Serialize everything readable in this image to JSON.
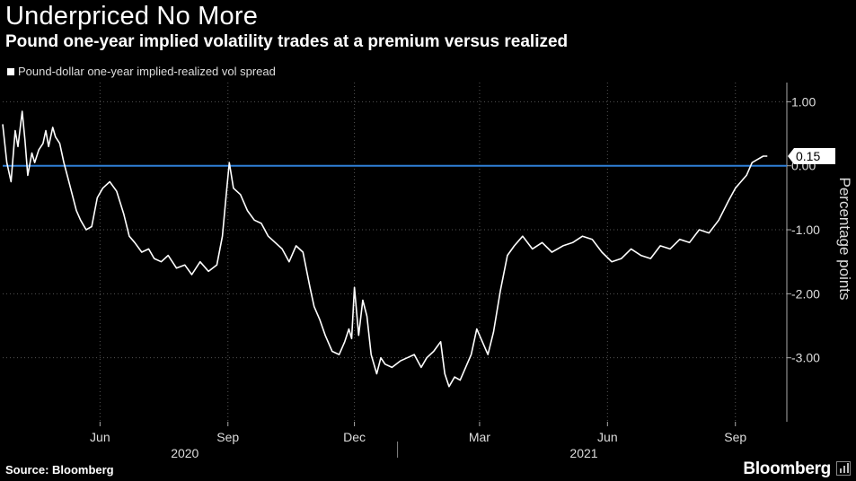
{
  "header": {
    "title": "Underpriced No More",
    "subtitle": "Pound one-year implied volatility trades at a premium versus realized"
  },
  "footer": {
    "source": "Source: Bloomberg",
    "brand": "Bloomberg"
  },
  "colors": {
    "background": "#000000",
    "series": "#ffffff",
    "zero_line": "#2f7fd6",
    "callout_bg": "#ffffff"
  },
  "chart_data": {
    "type": "line",
    "title": "Underpriced No More",
    "subtitle": "Pound one-year implied volatility trades at a premium versus realized",
    "ylabel": "Percentage points",
    "ylim": [
      -4.0,
      1.3
    ],
    "yticks": [
      1.0,
      0.0,
      -1.0,
      -2.0,
      -3.0
    ],
    "ytick_labels": [
      "1.00",
      "0.00",
      "-1.00",
      "-2.00",
      "-3.00"
    ],
    "x_range": [
      "2020-03-23",
      "2021-10-08"
    ],
    "x_ticks": [
      {
        "date": "2020-06-01",
        "label": "Jun"
      },
      {
        "date": "2020-09-01",
        "label": "Sep"
      },
      {
        "date": "2020-12-01",
        "label": "Dec"
      },
      {
        "date": "2021-03-01",
        "label": "Mar"
      },
      {
        "date": "2021-06-01",
        "label": "Jun"
      },
      {
        "date": "2021-09-01",
        "label": "Sep"
      }
    ],
    "x_years": [
      {
        "label": "2020",
        "center": "2020-08-01"
      },
      {
        "label": "2021",
        "center": "2021-05-15"
      }
    ],
    "year_divider": "2021-01-01",
    "grid": true,
    "legend_position": "top-left",
    "reference_line": {
      "y": 0.0
    },
    "last_value_label": "0.15",
    "series": [
      {
        "name": "Pound-dollar one-year implied-realized vol spread",
        "x": [
          "2020-03-23",
          "2020-03-26",
          "2020-03-29",
          "2020-04-01",
          "2020-04-03",
          "2020-04-06",
          "2020-04-08",
          "2020-04-10",
          "2020-04-13",
          "2020-04-15",
          "2020-04-18",
          "2020-04-21",
          "2020-04-23",
          "2020-04-25",
          "2020-04-28",
          "2020-04-30",
          "2020-05-03",
          "2020-05-06",
          "2020-05-09",
          "2020-05-12",
          "2020-05-15",
          "2020-05-18",
          "2020-05-22",
          "2020-05-26",
          "2020-05-30",
          "2020-06-03",
          "2020-06-08",
          "2020-06-13",
          "2020-06-18",
          "2020-06-22",
          "2020-06-26",
          "2020-07-01",
          "2020-07-06",
          "2020-07-10",
          "2020-07-15",
          "2020-07-20",
          "2020-07-26",
          "2020-08-01",
          "2020-08-06",
          "2020-08-12",
          "2020-08-18",
          "2020-08-24",
          "2020-08-28",
          "2020-08-31",
          "2020-09-02",
          "2020-09-05",
          "2020-09-10",
          "2020-09-15",
          "2020-09-20",
          "2020-09-25",
          "2020-09-30",
          "2020-10-05",
          "2020-10-10",
          "2020-10-15",
          "2020-10-20",
          "2020-10-25",
          "2020-10-30",
          "2020-11-02",
          "2020-11-06",
          "2020-11-10",
          "2020-11-15",
          "2020-11-20",
          "2020-11-24",
          "2020-11-27",
          "2020-11-29",
          "2020-12-01",
          "2020-12-04",
          "2020-12-07",
          "2020-12-10",
          "2020-12-13",
          "2020-12-17",
          "2020-12-20",
          "2020-12-23",
          "2020-12-28",
          "2021-01-03",
          "2021-01-08",
          "2021-01-13",
          "2021-01-18",
          "2021-01-22",
          "2021-01-27",
          "2021-02-01",
          "2021-02-04",
          "2021-02-07",
          "2021-02-11",
          "2021-02-15",
          "2021-02-19",
          "2021-02-23",
          "2021-02-27",
          "2021-03-03",
          "2021-03-07",
          "2021-03-11",
          "2021-03-16",
          "2021-03-21",
          "2021-03-26",
          "2021-04-01",
          "2021-04-08",
          "2021-04-15",
          "2021-04-22",
          "2021-04-30",
          "2021-05-07",
          "2021-05-14",
          "2021-05-21",
          "2021-05-28",
          "2021-06-04",
          "2021-06-11",
          "2021-06-18",
          "2021-06-25",
          "2021-07-02",
          "2021-07-09",
          "2021-07-16",
          "2021-07-23",
          "2021-07-30",
          "2021-08-06",
          "2021-08-13",
          "2021-08-20",
          "2021-08-27",
          "2021-09-01",
          "2021-09-05",
          "2021-09-09",
          "2021-09-13",
          "2021-09-17",
          "2021-09-21",
          "2021-09-24"
        ],
        "y": [
          0.65,
          0.05,
          -0.25,
          0.55,
          0.3,
          0.85,
          0.4,
          -0.15,
          0.2,
          0.05,
          0.25,
          0.35,
          0.55,
          0.3,
          0.6,
          0.45,
          0.35,
          0.05,
          -0.2,
          -0.45,
          -0.7,
          -0.85,
          -1.0,
          -0.95,
          -0.5,
          -0.35,
          -0.25,
          -0.4,
          -0.75,
          -1.1,
          -1.2,
          -1.35,
          -1.3,
          -1.45,
          -1.5,
          -1.4,
          -1.6,
          -1.55,
          -1.7,
          -1.5,
          -1.65,
          -1.55,
          -1.1,
          -0.4,
          0.05,
          -0.35,
          -0.45,
          -0.7,
          -0.85,
          -0.9,
          -1.1,
          -1.2,
          -1.3,
          -1.5,
          -1.25,
          -1.35,
          -1.9,
          -2.2,
          -2.4,
          -2.65,
          -2.9,
          -2.95,
          -2.75,
          -2.55,
          -2.7,
          -1.9,
          -2.65,
          -2.1,
          -2.35,
          -2.95,
          -3.25,
          -3.0,
          -3.1,
          -3.15,
          -3.05,
          -3.0,
          -2.95,
          -3.15,
          -3.0,
          -2.9,
          -2.75,
          -3.25,
          -3.45,
          -3.3,
          -3.35,
          -3.15,
          -2.95,
          -2.55,
          -2.75,
          -2.95,
          -2.6,
          -1.95,
          -1.4,
          -1.25,
          -1.1,
          -1.3,
          -1.2,
          -1.35,
          -1.25,
          -1.2,
          -1.1,
          -1.15,
          -1.35,
          -1.5,
          -1.45,
          -1.3,
          -1.4,
          -1.45,
          -1.25,
          -1.3,
          -1.15,
          -1.2,
          -1.0,
          -1.05,
          -0.85,
          -0.55,
          -0.35,
          -0.25,
          -0.15,
          0.05,
          0.1,
          0.15,
          0.15
        ]
      }
    ]
  }
}
